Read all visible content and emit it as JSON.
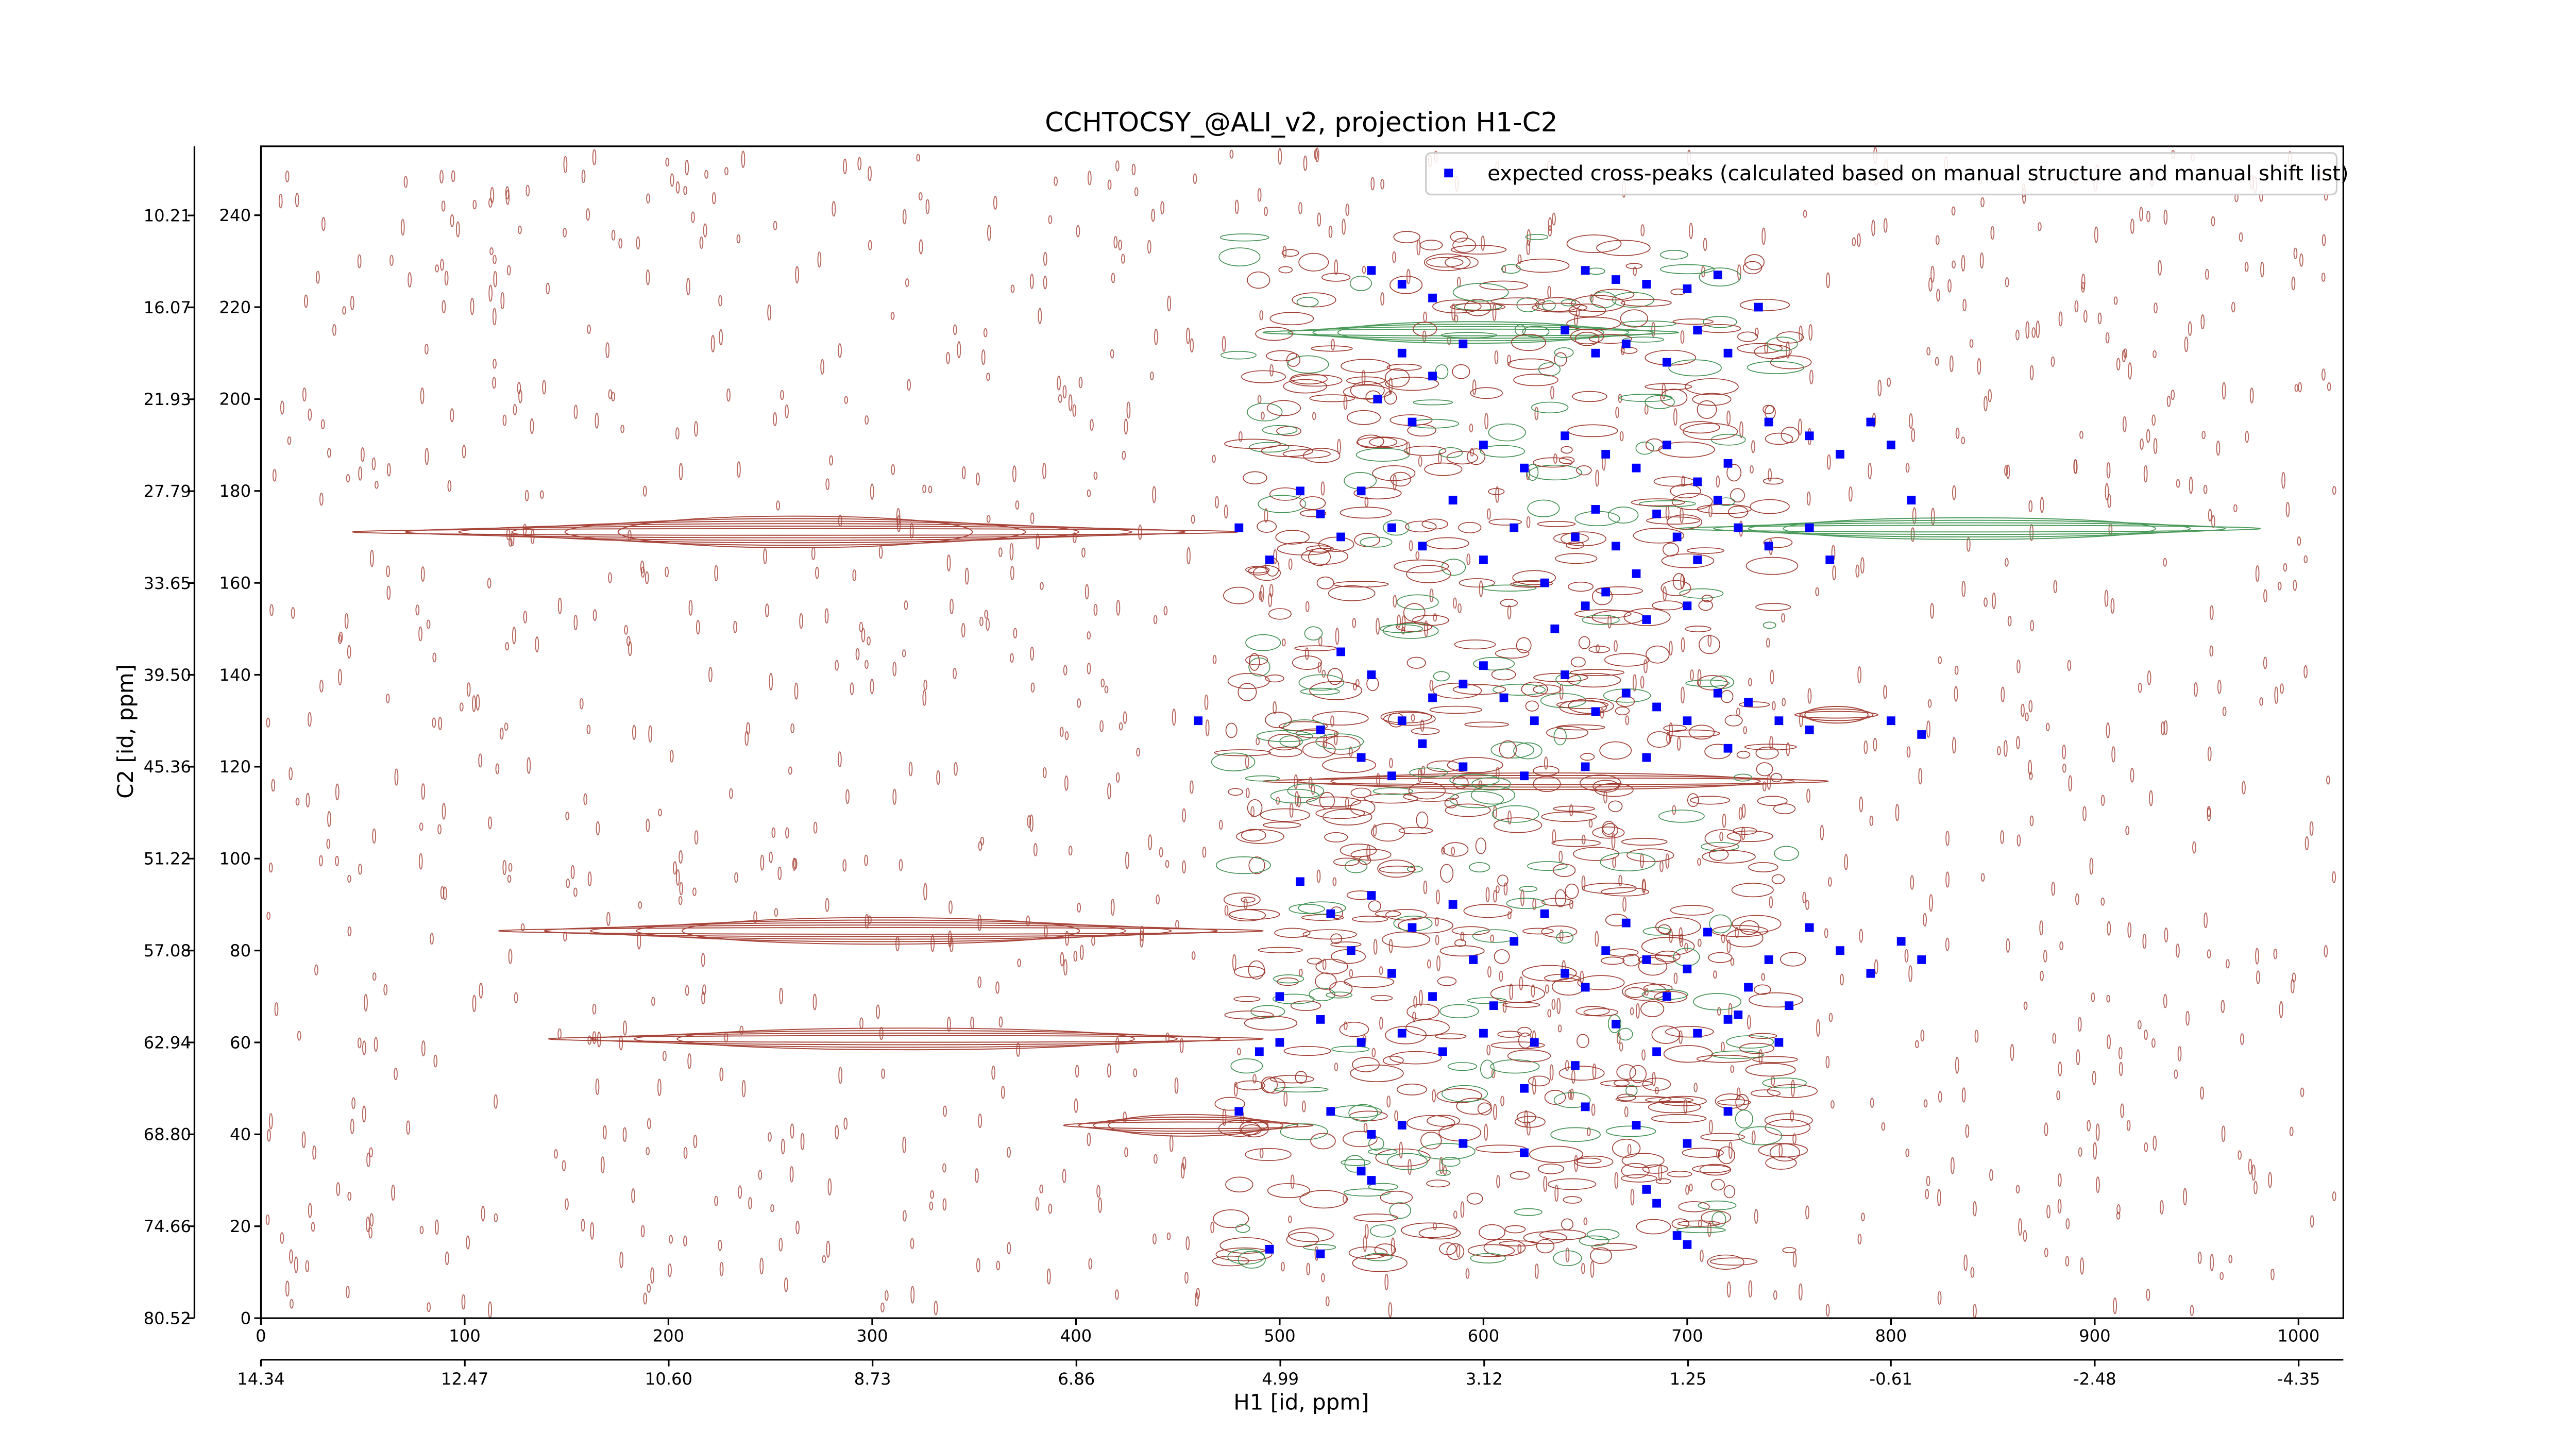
{
  "chart_data": {
    "type": "scatter",
    "title": "CCHTOCSY_@ALI_v2, projection H1-C2",
    "xlabel": "H1 [id, ppm]",
    "ylabel": "C2 [id, ppm]",
    "xlim": [
      0,
      1022
    ],
    "xticks": [
      0,
      100,
      200,
      300,
      400,
      500,
      600,
      700,
      800,
      900,
      1000
    ],
    "ylim": [
      0,
      255
    ],
    "yticks": [
      0,
      20,
      40,
      60,
      80,
      100,
      120,
      140,
      160,
      180,
      200,
      220,
      240
    ],
    "x2lim": [
      14.34,
      -4.76
    ],
    "x2ticks": [
      14.34,
      12.47,
      {
        "value": 10.6,
        "label": "10.60"
      },
      8.73,
      6.86,
      4.99,
      3.12,
      1.25,
      -0.61,
      -2.48,
      -4.35
    ],
    "y2lim": [
      80.52,
      5.8
    ],
    "y2ticks": [
      80.52,
      74.66,
      {
        "value": 68.8,
        "label": "68.80"
      },
      62.94,
      57.08,
      51.22,
      45.36,
      {
        "value": 39.5,
        "label": "39.50"
      },
      33.65,
      27.79,
      21.93,
      16.07,
      10.21
    ],
    "legend": "upper right",
    "series": [
      {
        "name": "expected cross-peaks (calculated based on manual structure and manual shift list)",
        "color": "#0000ff",
        "x": [
          545,
          560,
          575,
          650,
          665,
          680,
          700,
          715,
          640,
          655,
          670,
          690,
          705,
          720,
          735,
          560,
          575,
          590,
          548,
          565,
          600,
          620,
          640,
          660,
          675,
          690,
          705,
          720,
          740,
          760,
          775,
          790,
          800,
          810,
          520,
          530,
          540,
          555,
          570,
          585,
          600,
          615,
          630,
          645,
          655,
          665,
          675,
          685,
          695,
          705,
          715,
          725,
          740,
          760,
          770,
          650,
          635,
          660,
          680,
          700,
          480,
          495,
          510,
          530,
          545,
          560,
          575,
          590,
          600,
          610,
          625,
          640,
          655,
          670,
          685,
          700,
          715,
          730,
          745,
          760,
          520,
          540,
          555,
          570,
          590,
          620,
          650,
          680,
          720,
          800,
          815,
          460,
          510,
          525,
          535,
          545,
          555,
          565,
          575,
          585,
          595,
          605,
          615,
          630,
          640,
          650,
          660,
          670,
          680,
          690,
          700,
          710,
          720,
          730,
          740,
          750,
          760,
          775,
          790,
          805,
          815,
          520,
          540,
          560,
          580,
          600,
          625,
          645,
          665,
          685,
          705,
          725,
          745,
          500,
          490,
          480,
          525,
          545,
          560,
          590,
          620,
          650,
          675,
          700,
          720,
          540,
          545,
          620,
          680,
          685,
          695,
          495,
          520,
          700,
          500
        ],
        "y": [
          228,
          225,
          222,
          228,
          226,
          225,
          224,
          227,
          215,
          210,
          212,
          208,
          215,
          210,
          220,
          210,
          205,
          212,
          200,
          195,
          190,
          185,
          192,
          188,
          185,
          190,
          182,
          186,
          195,
          192,
          188,
          195,
          190,
          178,
          175,
          170,
          180,
          172,
          168,
          178,
          165,
          172,
          160,
          170,
          176,
          168,
          162,
          175,
          170,
          165,
          178,
          172,
          168,
          172,
          165,
          155,
          150,
          158,
          152,
          155,
          172,
          165,
          180,
          145,
          140,
          130,
          135,
          138,
          142,
          135,
          130,
          140,
          132,
          136,
          133,
          130,
          136,
          134,
          130,
          128,
          128,
          122,
          118,
          125,
          120,
          118,
          120,
          122,
          124,
          130,
          127,
          130,
          95,
          88,
          80,
          92,
          75,
          85,
          70,
          90,
          78,
          68,
          82,
          88,
          75,
          72,
          80,
          86,
          78,
          70,
          76,
          84,
          65,
          72,
          78,
          68,
          85,
          80,
          75,
          82,
          78,
          65,
          60,
          62,
          58,
          62,
          60,
          55,
          64,
          58,
          62,
          66,
          60,
          70,
          58,
          45,
          45,
          40,
          42,
          38,
          36,
          46,
          42,
          38,
          45,
          32,
          30,
          50,
          28,
          25,
          18,
          15,
          14,
          16,
          60
        ]
      }
    ]
  }
}
